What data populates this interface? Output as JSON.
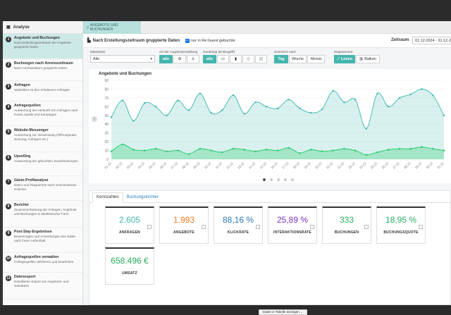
{
  "sidebar": {
    "header": "Analyse",
    "items": [
      {
        "num": "1",
        "title": "Angebote und Buchungen",
        "desc": "Nach Erstellungszeitraum der Angebote gruppierte Daten",
        "active": true
      },
      {
        "num": "2",
        "title": "Buchungen nach Anreisezeitraum",
        "desc": "Nach Anreisedatum gruppierte Daten"
      },
      {
        "num": "3",
        "title": "Anfragen",
        "desc": "Statistiken zu den erhaltenen Anfragen"
      },
      {
        "num": "4",
        "title": "Anfragequellen",
        "desc": "Auswertung der Herkunft von Anfragen nach Kanal, Quelle und Kampagne"
      },
      {
        "num": "5",
        "title": "Website-Messenger",
        "desc": "Auswertung zur Verwendung (Öffnungsrate, Nutzung, Anfragen etc.)"
      },
      {
        "num": "6",
        "title": "Upselling",
        "desc": "Auswertung der gebuchten Zusatzleistungen"
      },
      {
        "num": "7",
        "title": "Gäste-Profilanalyse",
        "desc": "Daten und Diagramme nach verschiedenen Kriterien"
      },
      {
        "num": "8",
        "title": "Berichte",
        "desc": "Zusammenfassung der Anfragen, Angebote und Buchungen in tabellarischer Form"
      },
      {
        "num": "9",
        "title": "Post-Stay-Ergebnisse",
        "desc": "Bewertungen und Anmerkungen der Gäste nach ihrem Aufenthalt"
      },
      {
        "num": "10",
        "title": "Anfragequellen verwalten",
        "desc": "Anfragequellen definieren und bearbeiten"
      },
      {
        "num": "11",
        "title": "Datenexport",
        "desc": "Detaillierter Export von Angebots- und Gastdaten"
      }
    ]
  },
  "main": {
    "tab_label": "ANGEBOTE UND BUCHUNGEN",
    "title": "Nach Erstellungszeitraum gruppierte Daten",
    "checkbox_label": "nur in Re:Guest gebuchte",
    "zeitraum_label": "Zeitraum",
    "zeitraum_value": "01.12.2024 - 31.12.2024"
  },
  "filters": {
    "mitarbeiter_label": "Mitarbeiter",
    "mitarbeiter_value": "Alle",
    "art_label": "Art der Angebotserstellung",
    "art_all": "alle",
    "geraet_label": "Gerätetyp (Erstzugriff)",
    "geraet_all": "alle",
    "summiert_label": "Summiert nach",
    "tag": "Tag",
    "woche": "Woche",
    "monat": "Monat",
    "diagrammart_label": "Diagrammart",
    "linien": "Linien",
    "balken": "Balken"
  },
  "chart_data": {
    "type": "area",
    "title": "Angebote und Buchungen",
    "ylim": [
      0,
      90
    ],
    "yticks": [
      0,
      10,
      20,
      30,
      40,
      50,
      60,
      70,
      80,
      90
    ],
    "categories": [
      "01.12",
      "02.12",
      "03.12",
      "04.12",
      "05.12",
      "06.12",
      "07.12",
      "08.12",
      "09.12",
      "10.12",
      "11.12",
      "12.12",
      "13.12",
      "14.12",
      "15.12",
      "16.12",
      "17.12",
      "18.12",
      "19.12",
      "20.12",
      "21.12",
      "22.12",
      "23.12",
      "24.12",
      "25.12",
      "26.12",
      "27.12",
      "28.12",
      "29.12",
      "30.12",
      "31.12"
    ],
    "series": [
      {
        "color": "#4dbdb5",
        "values": [
          48,
          67,
          44,
          64,
          60,
          50,
          67,
          56,
          75,
          53,
          56,
          73,
          52,
          65,
          60,
          58,
          68,
          58,
          53,
          57,
          78,
          65,
          68,
          35,
          75,
          60,
          70,
          74,
          80,
          73,
          50
        ]
      },
      {
        "color": "#2ecc71",
        "values": [
          9,
          17,
          11,
          10,
          12,
          9,
          10,
          6,
          12,
          10,
          8,
          12,
          11,
          9,
          11,
          10,
          13,
          7,
          11,
          9,
          10,
          12,
          10,
          5,
          8,
          11,
          12,
          12,
          14,
          12,
          10
        ]
      }
    ],
    "grid": true
  },
  "carousel": {
    "pages": 5,
    "active": 0
  },
  "kpi": {
    "tabs": [
      "Kennzahlen",
      "Buchungstrichter"
    ],
    "cards": [
      {
        "value": "2.605",
        "label": "ANFRAGEN",
        "color": "#45b6ae"
      },
      {
        "value": "1.993",
        "label": "ANGEBOTE",
        "color": "#ef7d22"
      },
      {
        "value": "88,16 %",
        "label": "KLICKRATE",
        "color": "#2a7ab8"
      },
      {
        "value": "25,89 %",
        "label": "INTERAKTIONSRATE",
        "color": "#7b2fb8"
      },
      {
        "value": "333",
        "label": "BUCHUNGEN",
        "color": "#27ae60"
      },
      {
        "value": "18,95 %",
        "label": "BUCHUNGSQUOTE",
        "color": "#27ae60"
      },
      {
        "value": "658.496 €",
        "label": "UMSATZ",
        "color": "#27ae60"
      }
    ],
    "table_button": "Daten in Tabelle anzeigen ⌄"
  }
}
